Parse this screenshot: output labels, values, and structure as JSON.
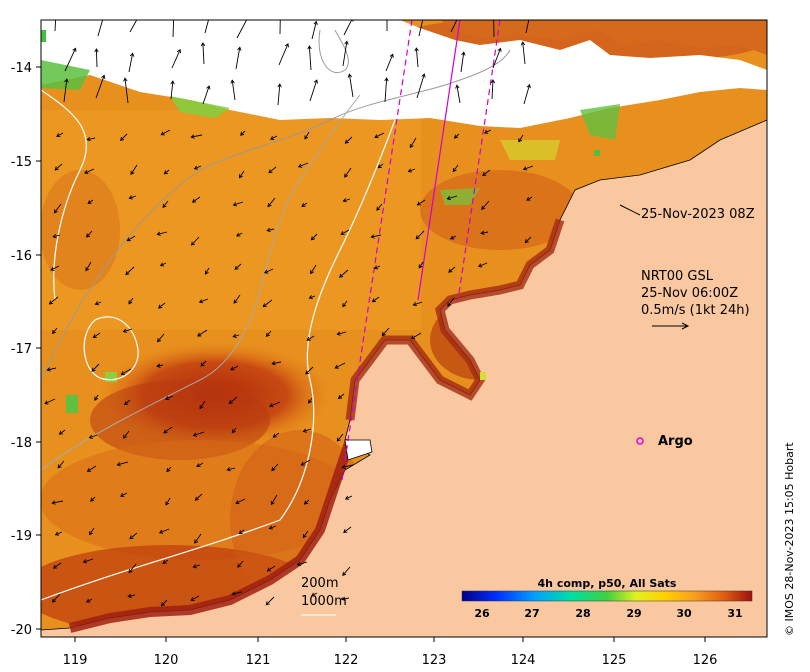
{
  "map": {
    "lon_ticks": [
      "119",
      "120",
      "121",
      "122",
      "123",
      "124",
      "125",
      "126"
    ],
    "lat_ticks": [
      "-14",
      "-15",
      "-16",
      "-17",
      "-18",
      "-19",
      "-20"
    ],
    "lon_range": [
      118.6,
      126.8
    ],
    "lat_range": [
      -20.1,
      -13.5
    ]
  },
  "annotations": {
    "pass_time": "25-Nov-2023 08Z",
    "current_title": "NRT00 GSL",
    "current_time": "25-Nov 06:00Z",
    "current_scale": "0.5m/s (1kt 24h)",
    "argo_label": "Argo",
    "contour_200": "200m",
    "contour_1000": "1000m",
    "credit": "© IMOS 28-Nov-2023 15:05 Hobart"
  },
  "colorbar": {
    "title": "4h comp, p50, All Sats",
    "ticks": [
      "26",
      "27",
      "28",
      "29",
      "30",
      "31"
    ],
    "range": [
      25.5,
      31.5
    ]
  },
  "colors": {
    "land": "#f9c8a0",
    "cloud": "#ffffff",
    "warm": "#e88a1a",
    "hot": "#b83a10",
    "argo": "#e000e0",
    "swath": "#d000d0"
  }
}
